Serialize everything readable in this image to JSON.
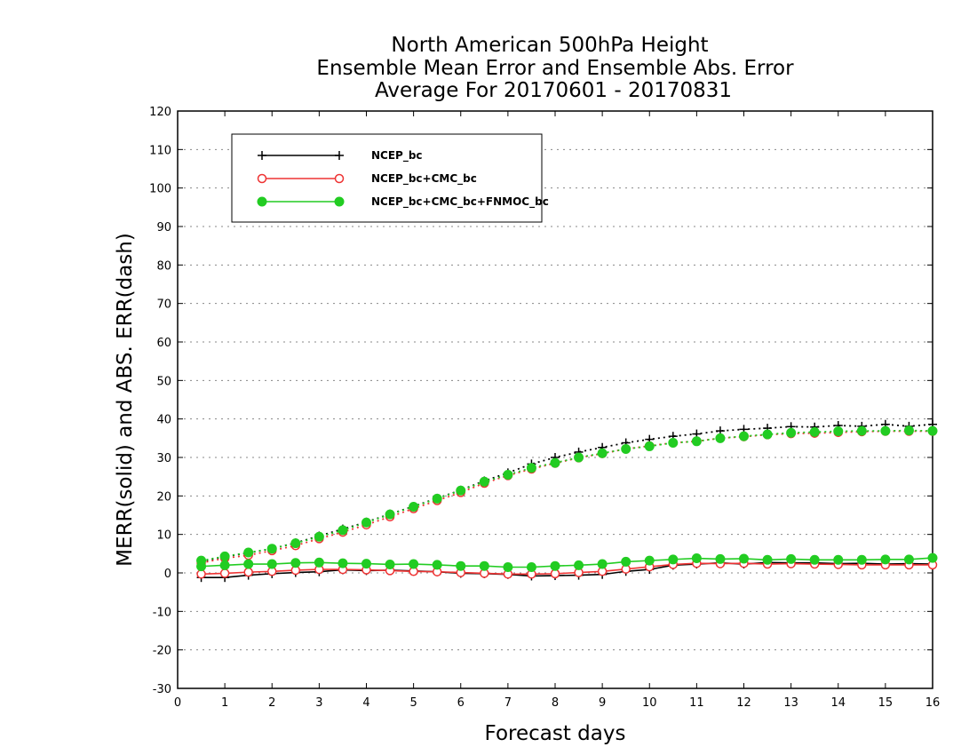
{
  "chart_data": {
    "type": "line",
    "title": [
      "North American 500hPa Height",
      "Ensemble Mean Error and Ensemble Abs. Error",
      "Average For 20170601 - 20170831"
    ],
    "xlabel": "Forecast days",
    "ylabel": "MERR(solid) and ABS. ERR(dash)",
    "xlim": [
      0,
      16
    ],
    "ylim": [
      -30,
      120
    ],
    "xticks": [
      0,
      1,
      2,
      3,
      4,
      5,
      6,
      7,
      8,
      9,
      10,
      11,
      12,
      13,
      14,
      15,
      16
    ],
    "yticks": [
      -30,
      -20,
      -10,
      0,
      10,
      20,
      30,
      40,
      50,
      60,
      70,
      80,
      90,
      100,
      110,
      120
    ],
    "grid": "horizontal dotted",
    "legend_position": "top-left",
    "x": [
      0.5,
      1,
      1.5,
      2,
      2.5,
      3,
      3.5,
      4,
      4.5,
      5,
      5.5,
      6,
      6.5,
      7,
      7.5,
      8,
      8.5,
      9,
      9.5,
      10,
      10.5,
      11,
      11.5,
      12,
      12.5,
      13,
      13.5,
      14,
      14.5,
      15,
      15.5,
      16
    ],
    "series": [
      {
        "name": "NCEP_bc",
        "color": "#000000",
        "marker": "plus",
        "merr": [
          -1.2,
          -1.2,
          -0.6,
          -0.2,
          0.1,
          0.3,
          0.8,
          0.6,
          0.7,
          0.5,
          0.3,
          -0.1,
          -0.2,
          -0.4,
          -0.8,
          -0.7,
          -0.6,
          -0.4,
          0.4,
          0.9,
          2.0,
          2.3,
          2.6,
          2.3,
          2.7,
          2.6,
          2.6,
          2.4,
          2.5,
          2.3,
          2.4,
          2.3
        ],
        "abserr": [
          3.0,
          4.2,
          5.2,
          6.3,
          7.8,
          9.6,
          11.4,
          13.2,
          15.3,
          17.3,
          19.4,
          21.5,
          23.9,
          26.0,
          28.3,
          30.0,
          31.4,
          32.6,
          33.8,
          34.7,
          35.5,
          36.1,
          36.9,
          37.3,
          37.6,
          38.0,
          37.9,
          38.3,
          38.1,
          38.6,
          38.1,
          38.6
        ]
      },
      {
        "name": "NCEP_bc+CMC_bc",
        "color": "#ee3333",
        "marker": "open-circle",
        "merr": [
          -0.3,
          -0.1,
          0.2,
          0.4,
          0.7,
          0.9,
          0.9,
          0.8,
          0.6,
          0.4,
          0.3,
          0.1,
          -0.1,
          -0.3,
          -0.3,
          -0.2,
          0.1,
          0.4,
          1.0,
          1.6,
          2.2,
          2.5,
          2.4,
          2.5,
          2.3,
          2.4,
          2.3,
          2.2,
          2.1,
          2.1,
          2.1,
          2.1
        ],
        "abserr": [
          2.6,
          3.8,
          4.6,
          5.8,
          7.1,
          8.9,
          10.6,
          12.5,
          14.6,
          16.7,
          18.8,
          20.9,
          23.3,
          25.3,
          27.0,
          28.5,
          29.9,
          31.0,
          32.2,
          33.0,
          33.8,
          34.2,
          35.0,
          35.4,
          35.9,
          36.2,
          36.3,
          36.5,
          36.7,
          36.8,
          36.8,
          36.8
        ]
      },
      {
        "name": "NCEP_bc+CMC_bc+FNMOC_bc",
        "color": "#22cc22",
        "marker": "filled-circle",
        "merr": [
          1.7,
          2.0,
          2.3,
          2.3,
          2.6,
          2.7,
          2.5,
          2.4,
          2.2,
          2.3,
          2.1,
          1.8,
          1.8,
          1.5,
          1.5,
          1.8,
          2.0,
          2.3,
          2.9,
          3.2,
          3.5,
          3.8,
          3.6,
          3.7,
          3.4,
          3.6,
          3.4,
          3.4,
          3.4,
          3.5,
          3.5,
          3.9
        ],
        "abserr": [
          3.2,
          4.3,
          5.3,
          6.3,
          7.7,
          9.4,
          11.1,
          13.1,
          15.2,
          17.2,
          19.3,
          21.4,
          23.7,
          25.5,
          27.3,
          28.6,
          30.0,
          31.1,
          32.2,
          32.9,
          33.8,
          34.2,
          35.0,
          35.5,
          36.0,
          36.4,
          36.6,
          36.8,
          36.9,
          36.9,
          37.0,
          36.9
        ]
      }
    ]
  }
}
